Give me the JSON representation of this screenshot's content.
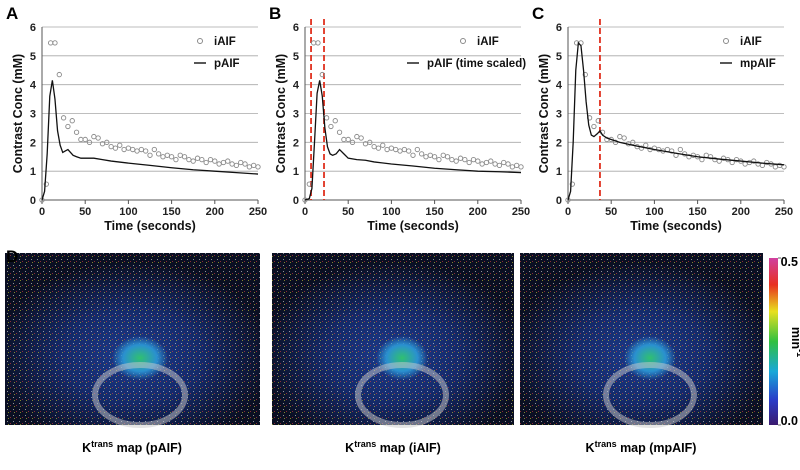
{
  "chart_data": [
    {
      "type": "line",
      "panel_label": "A",
      "ylabel": "Contrast Conc (mM)",
      "xlabel": "Time (seconds)",
      "xlim": [
        0,
        250
      ],
      "xticks": [
        0,
        50,
        100,
        150,
        200,
        250
      ],
      "ylim": [
        0,
        6
      ],
      "yticks": [
        0,
        1,
        2,
        3,
        4,
        5,
        6
      ],
      "grid": true,
      "legend": "upper right",
      "series": [
        {
          "name": "iAIF",
          "style": "markers",
          "color": "#8a8a8a",
          "x": [
            0,
            5,
            10,
            15,
            20,
            25,
            30,
            35,
            40,
            45,
            50,
            55,
            60,
            65,
            70,
            75,
            80,
            85,
            90,
            95,
            100,
            105,
            110,
            115,
            120,
            125,
            130,
            135,
            140,
            145,
            150,
            155,
            160,
            165,
            170,
            175,
            180,
            185,
            190,
            195,
            200,
            205,
            210,
            215,
            220,
            225,
            230,
            235,
            240,
            245,
            250
          ],
          "values": [
            0,
            0.55,
            5.45,
            5.45,
            4.35,
            2.85,
            2.55,
            2.75,
            2.35,
            2.1,
            2.1,
            2.0,
            2.2,
            2.15,
            1.95,
            2.0,
            1.85,
            1.8,
            1.9,
            1.75,
            1.8,
            1.75,
            1.7,
            1.75,
            1.7,
            1.55,
            1.75,
            1.6,
            1.5,
            1.55,
            1.5,
            1.4,
            1.55,
            1.5,
            1.4,
            1.35,
            1.45,
            1.4,
            1.3,
            1.4,
            1.35,
            1.25,
            1.3,
            1.35,
            1.25,
            1.2,
            1.3,
            1.25,
            1.15,
            1.2,
            1.15
          ]
        },
        {
          "name": "pAIF",
          "style": "line",
          "color": "#111111",
          "x": [
            0,
            3,
            6,
            9,
            12,
            15,
            18,
            21,
            24,
            27,
            30,
            33,
            36,
            40,
            45,
            50,
            60,
            70,
            80,
            100,
            125,
            150,
            175,
            200,
            225,
            250
          ],
          "values": [
            0,
            0.3,
            1.6,
            3.6,
            4.15,
            3.5,
            2.4,
            1.9,
            1.65,
            1.7,
            1.75,
            1.65,
            1.55,
            1.5,
            1.45,
            1.45,
            1.45,
            1.4,
            1.35,
            1.28,
            1.2,
            1.12,
            1.05,
            1.0,
            0.95,
            0.9
          ]
        }
      ]
    },
    {
      "type": "line",
      "panel_label": "B",
      "ylabel": "Contrast Conc (mM)",
      "xlabel": "Time (seconds)",
      "xlim": [
        0,
        250
      ],
      "xticks": [
        0,
        50,
        100,
        150,
        200,
        250
      ],
      "ylim": [
        0,
        6
      ],
      "yticks": [
        0,
        1,
        2,
        3,
        4,
        5,
        6
      ],
      "grid": true,
      "legend": "upper right",
      "vlines": [
        7,
        22
      ],
      "vline_color": "#e0301e",
      "series": [
        {
          "name": "iAIF",
          "style": "markers",
          "color": "#8a8a8a",
          "x": [
            0,
            5,
            10,
            15,
            20,
            25,
            30,
            35,
            40,
            45,
            50,
            55,
            60,
            65,
            70,
            75,
            80,
            85,
            90,
            95,
            100,
            105,
            110,
            115,
            120,
            125,
            130,
            135,
            140,
            145,
            150,
            155,
            160,
            165,
            170,
            175,
            180,
            185,
            190,
            195,
            200,
            205,
            210,
            215,
            220,
            225,
            230,
            235,
            240,
            245,
            250
          ],
          "values": [
            0,
            0.55,
            5.45,
            5.45,
            4.35,
            2.85,
            2.55,
            2.75,
            2.35,
            2.1,
            2.1,
            2.0,
            2.2,
            2.15,
            1.95,
            2.0,
            1.85,
            1.8,
            1.9,
            1.75,
            1.8,
            1.75,
            1.7,
            1.75,
            1.7,
            1.55,
            1.75,
            1.6,
            1.5,
            1.55,
            1.5,
            1.4,
            1.55,
            1.5,
            1.4,
            1.35,
            1.45,
            1.4,
            1.3,
            1.4,
            1.35,
            1.25,
            1.3,
            1.35,
            1.25,
            1.2,
            1.3,
            1.25,
            1.15,
            1.2,
            1.15
          ]
        },
        {
          "name": "pAIF (time scaled)",
          "style": "line",
          "color": "#111111",
          "x": [
            0,
            5,
            8,
            11,
            14,
            17,
            20,
            23,
            26,
            29,
            32,
            36,
            40,
            45,
            50,
            60,
            70,
            80,
            100,
            125,
            150,
            175,
            200,
            225,
            250
          ],
          "values": [
            0,
            0.05,
            0.4,
            2.0,
            3.7,
            4.15,
            3.6,
            2.5,
            1.85,
            1.6,
            1.55,
            1.6,
            1.75,
            1.6,
            1.45,
            1.4,
            1.38,
            1.32,
            1.25,
            1.18,
            1.1,
            1.05,
            1.0,
            0.98,
            0.95
          ]
        }
      ]
    },
    {
      "type": "line",
      "panel_label": "C",
      "ylabel": "Contrast Conc (mM)",
      "xlabel": "Time (seconds)",
      "xlim": [
        0,
        250
      ],
      "xticks": [
        0,
        50,
        100,
        150,
        200,
        250
      ],
      "ylim": [
        0,
        6
      ],
      "yticks": [
        0,
        1,
        2,
        3,
        4,
        5,
        6
      ],
      "grid": true,
      "legend": "upper right",
      "vlines": [
        37
      ],
      "vline_color": "#e0301e",
      "series": [
        {
          "name": "iAIF",
          "style": "markers",
          "color": "#8a8a8a",
          "x": [
            0,
            5,
            10,
            15,
            20,
            25,
            30,
            35,
            40,
            45,
            50,
            55,
            60,
            65,
            70,
            75,
            80,
            85,
            90,
            95,
            100,
            105,
            110,
            115,
            120,
            125,
            130,
            135,
            140,
            145,
            150,
            155,
            160,
            165,
            170,
            175,
            180,
            185,
            190,
            195,
            200,
            205,
            210,
            215,
            220,
            225,
            230,
            235,
            240,
            245,
            250
          ],
          "values": [
            0,
            0.55,
            5.45,
            5.45,
            4.35,
            2.85,
            2.55,
            2.75,
            2.35,
            2.1,
            2.1,
            2.0,
            2.2,
            2.15,
            1.95,
            2.0,
            1.85,
            1.8,
            1.9,
            1.75,
            1.8,
            1.75,
            1.7,
            1.75,
            1.7,
            1.55,
            1.75,
            1.6,
            1.5,
            1.55,
            1.5,
            1.4,
            1.55,
            1.5,
            1.4,
            1.35,
            1.45,
            1.4,
            1.3,
            1.4,
            1.35,
            1.25,
            1.3,
            1.35,
            1.25,
            1.2,
            1.3,
            1.25,
            1.15,
            1.2,
            1.15
          ]
        },
        {
          "name": "mpAIF",
          "style": "line",
          "color": "#111111",
          "x": [
            0,
            3,
            6,
            9,
            12,
            15,
            18,
            21,
            24,
            27,
            30,
            34,
            37,
            40,
            45,
            50,
            60,
            75,
            100,
            125,
            150,
            175,
            200,
            225,
            250
          ],
          "values": [
            0,
            0.3,
            2.0,
            4.5,
            5.45,
            5.35,
            4.5,
            3.4,
            2.6,
            2.25,
            2.2,
            2.3,
            2.4,
            2.25,
            2.15,
            2.1,
            2.0,
            1.9,
            1.75,
            1.62,
            1.5,
            1.42,
            1.35,
            1.28,
            1.22
          ]
        }
      ]
    }
  ],
  "maps": {
    "panel_label": "D",
    "images": [
      {
        "caption": "K",
        "caption_sup": "trans",
        "caption_rest": " map (pAIF)"
      },
      {
        "caption": "K",
        "caption_sup": "trans",
        "caption_rest": " map (iAIF)"
      },
      {
        "caption": "K",
        "caption_sup": "trans",
        "caption_rest": " map (mpAIF)"
      }
    ],
    "colorbar": {
      "unit": "min",
      "unit_sup": "-1",
      "ticks": [
        {
          "value": 0,
          "label": "0.0"
        },
        0.5
      ],
      "range": [
        0,
        0.5
      ]
    }
  }
}
